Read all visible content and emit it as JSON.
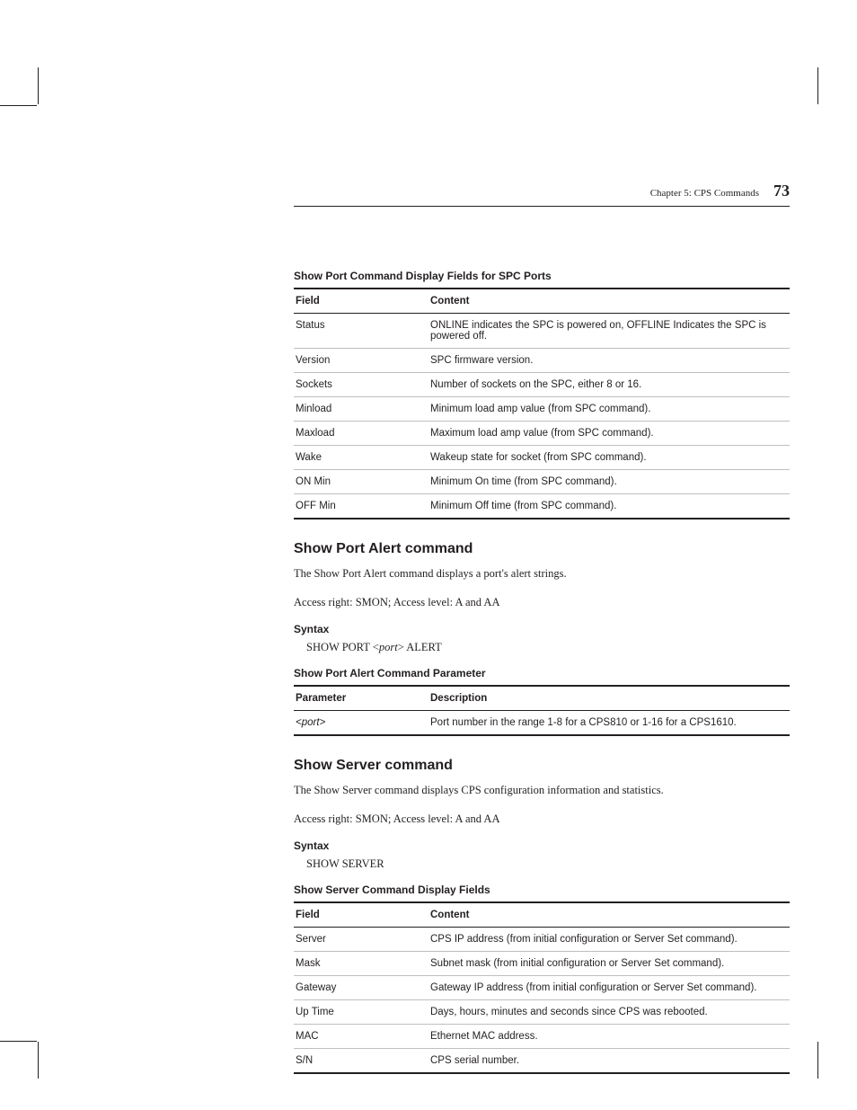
{
  "page": {
    "chapter_label": "Chapter 5: CPS Commands",
    "page_number": "73"
  },
  "spc_ports_table": {
    "title": "Show Port Command Display Fields for SPC Ports",
    "head": {
      "field": "Field",
      "content": "Content"
    },
    "rows": [
      {
        "field": "Status",
        "content": "ONLINE indicates the SPC is powered on, OFFLINE Indicates the SPC is powered off."
      },
      {
        "field": "Version",
        "content": "SPC firmware version."
      },
      {
        "field": "Sockets",
        "content": "Number of sockets on the SPC, either 8 or 16."
      },
      {
        "field": "Minload",
        "content": "Minimum load amp value (from SPC command)."
      },
      {
        "field": "Maxload",
        "content": "Maximum load amp value (from SPC command)."
      },
      {
        "field": "Wake",
        "content": "Wakeup state for socket (from SPC command)."
      },
      {
        "field": "ON Min",
        "content": "Minimum On time (from SPC command)."
      },
      {
        "field": "OFF Min",
        "content": "Minimum Off time (from SPC command)."
      }
    ]
  },
  "port_alert": {
    "heading": "Show Port Alert command",
    "desc": "The Show Port Alert command displays a port's alert strings.",
    "access": "Access right: SMON; Access level: A and AA",
    "syntax_label": "Syntax",
    "syntax_pre": "SHOW PORT <",
    "syntax_var": "port",
    "syntax_post": "> ALERT",
    "param_table": {
      "title": "Show Port Alert Command Parameter",
      "head": {
        "param": "Parameter",
        "desc": "Description"
      },
      "row": {
        "param_pre": "<",
        "param_var": "port",
        "param_post": ">",
        "desc": "Port number in the range 1-8 for a CPS810 or 1-16 for a CPS1610."
      }
    }
  },
  "show_server": {
    "heading": "Show Server command",
    "desc": "The Show Server command displays CPS configuration information and statistics.",
    "access": "Access right: SMON; Access level: A and AA",
    "syntax_label": "Syntax",
    "syntax": "SHOW SERVER",
    "table": {
      "title": "Show Server Command Display Fields",
      "head": {
        "field": "Field",
        "content": "Content"
      },
      "rows": [
        {
          "field": "Server",
          "content": "CPS IP address (from initial configuration or Server Set command)."
        },
        {
          "field": "Mask",
          "content": "Subnet mask (from initial configuration or Server Set command)."
        },
        {
          "field": "Gateway",
          "content": "Gateway IP address (from initial configuration or Server Set command)."
        },
        {
          "field": "Up Time",
          "content": "Days, hours, minutes and seconds since CPS was rebooted."
        },
        {
          "field": "MAC",
          "content": "Ethernet MAC address."
        },
        {
          "field": "S/N",
          "content": "CPS serial number."
        }
      ]
    }
  }
}
